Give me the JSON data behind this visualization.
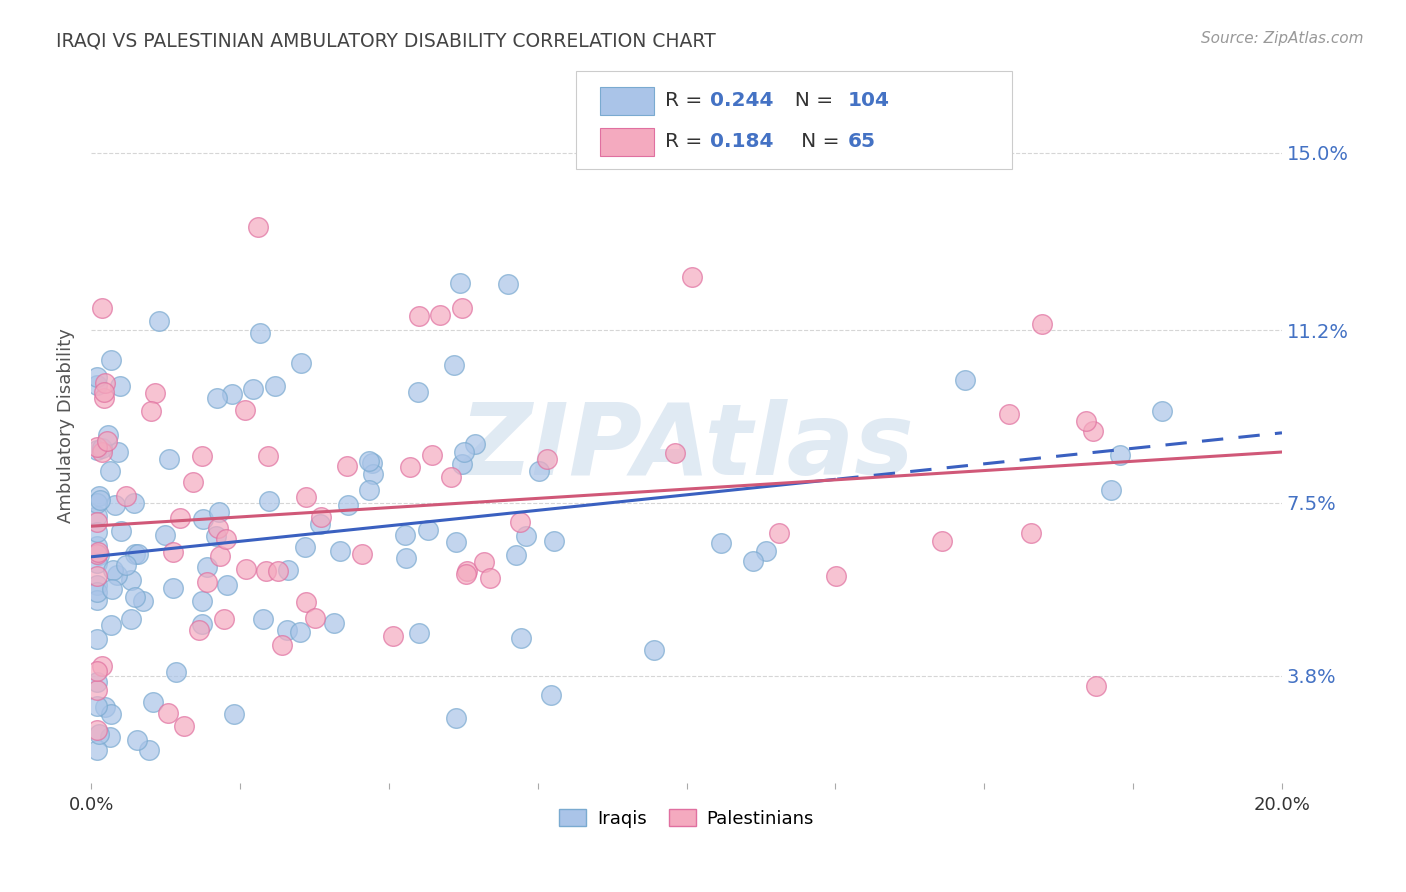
{
  "title": "IRAQI VS PALESTINIAN AMBULATORY DISABILITY CORRELATION CHART",
  "source": "Source: ZipAtlas.com",
  "ylabel": "Ambulatory Disability",
  "ytick_labels": [
    "3.8%",
    "7.5%",
    "11.2%",
    "15.0%"
  ],
  "ytick_values": [
    0.038,
    0.075,
    0.112,
    0.15
  ],
  "xlim": [
    0.0,
    0.2
  ],
  "ylim": [
    0.015,
    0.168
  ],
  "iraqi_color": "#aac4e8",
  "iraqi_edge_color": "#7aaad0",
  "palestinian_color": "#f4aabf",
  "palestinian_edge_color": "#e070a0",
  "iraqi_R": 0.244,
  "iraqi_N": 104,
  "palestinian_R": 0.184,
  "palestinian_N": 65,
  "trend_iraqi_color": "#3a60c0",
  "trend_palestinian_color": "#d05878",
  "watermark": "ZIPAtlas",
  "watermark_color": "#ccdcec",
  "background_color": "#ffffff",
  "grid_color": "#cccccc",
  "title_color": "#444444",
  "source_color": "#999999",
  "ylabel_color": "#555555",
  "right_tick_color": "#4472c4"
}
